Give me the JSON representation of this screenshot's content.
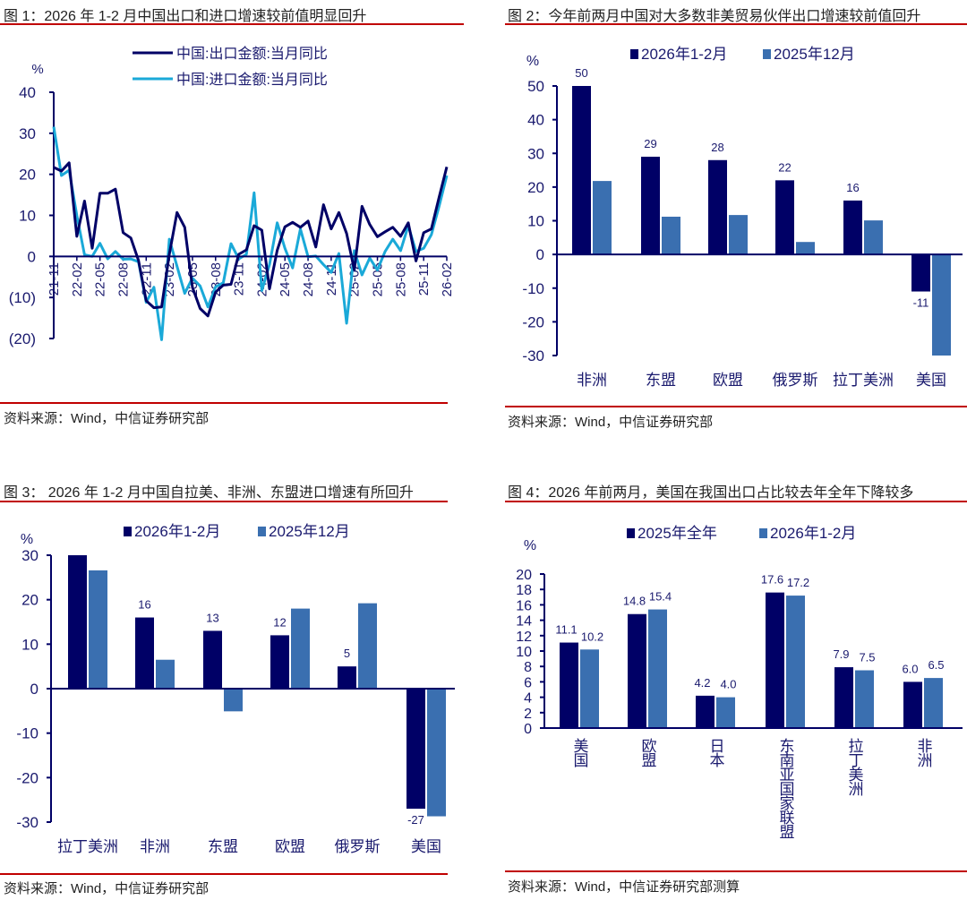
{
  "colors": {
    "navy": "#000066",
    "blue": "#3a6fb0",
    "cyan": "#1aa9d8",
    "rule": "#c00000"
  },
  "panels": [
    {
      "title": "图 1：2026 年 1-2 月中国出口和进口增速较前值明显回升",
      "source": "资料来源：Wind，中信证券研究部"
    },
    {
      "title": "图 2：今年前两月中国对大多数非美贸易伙伴出口增速较前值回升",
      "source": "资料来源：Wind，中信证券研究部"
    },
    {
      "title": "图 3： 2026 年 1-2 月中国自拉美、非洲、东盟进口增速有所回升",
      "source": "资料来源：Wind，中信证券研究部"
    },
    {
      "title": "图 4：2026 年前两月，美国在我国出口占比较去年全年下降较多",
      "source": "资料来源：Wind，中信证券研究部测算"
    }
  ],
  "chart_data": [
    {
      "type": "line",
      "yunit": "%",
      "ylim": [
        -20,
        40
      ],
      "yticks": [
        40,
        30,
        20,
        10,
        0,
        -10,
        -20
      ],
      "ytick_labels": [
        "40",
        "30",
        "20",
        "10",
        "0",
        "(10)",
        "(20)"
      ],
      "x_start": "21-11",
      "x_end": "26-02",
      "xtick_labels": [
        "21-11",
        "22-02",
        "22-05",
        "22-08",
        "22-11",
        "23-02",
        "23-05",
        "23-08",
        "23-11",
        "24-02",
        "24-05",
        "24-08",
        "24-11",
        "25-02",
        "25-05",
        "25-08",
        "25-11",
        "26-02"
      ],
      "legend": "top-center",
      "series": [
        {
          "name": "中国:出口金额:当月同比",
          "color": "#000066",
          "values": [
            21.7,
            20.8,
            22.8,
            4.9,
            13.5,
            2.0,
            15.4,
            15.4,
            16.4,
            5.8,
            4.5,
            -1.0,
            -10.8,
            -12.5,
            -12.3,
            0.5,
            10.7,
            7.1,
            -7.5,
            -12.7,
            -14.5,
            -8.7,
            -7.0,
            -6.8,
            0.5,
            1.6,
            7.5,
            6.4,
            -7.9,
            1.5,
            7.2,
            8.3,
            7.1,
            8.6,
            2.3,
            12.6,
            6.7,
            10.7,
            5.6,
            -3.3,
            12.2,
            7.8,
            4.8,
            6.0,
            7.1,
            4.9,
            8.2,
            -1.1,
            5.8,
            6.7,
            14.4,
            21.8
          ]
        },
        {
          "name": "中国:进口金额:当月同比",
          "color": "#1aa9d8",
          "values": [
            31.6,
            19.7,
            21.0,
            10.0,
            0.4,
            0.0,
            3.2,
            -0.6,
            1.2,
            -0.7,
            -0.6,
            -1.3,
            -11.2,
            -7.5,
            -20.3,
            4.2,
            -2.4,
            -9.0,
            -5.3,
            -7.2,
            -12.3,
            -7.4,
            -6.4,
            3.1,
            -0.6,
            0.5,
            15.5,
            -8.3,
            -2.0,
            8.2,
            2.0,
            -2.8,
            6.7,
            -0.1,
            0.1,
            -2.0,
            -3.9,
            0.7,
            -16.3,
            1.4,
            -4.5,
            -0.4,
            -3.3,
            1.2,
            4.2,
            1.4,
            7.5,
            1.2,
            2.0,
            5.3,
            12.2,
            19.7
          ]
        }
      ]
    },
    {
      "type": "bar",
      "yunit": "%",
      "ylim": [
        -30,
        50
      ],
      "yticks": [
        50,
        40,
        30,
        20,
        10,
        0,
        -10,
        -20,
        -30
      ],
      "categories": [
        "非洲",
        "东盟",
        "欧盟",
        "俄罗斯",
        "拉丁美洲",
        "美国"
      ],
      "legend": "top",
      "series": [
        {
          "name": "2026年1-2月",
          "color": "#000066",
          "values": [
            50,
            29,
            28,
            22,
            16,
            -11
          ],
          "labels": [
            "50",
            "29",
            "28",
            "22",
            "16",
            "-11"
          ]
        },
        {
          "name": "2025年12月",
          "color": "#3a6fb0",
          "values": [
            21.8,
            11.2,
            11.7,
            3.7,
            10.1,
            -30
          ],
          "labels": []
        }
      ]
    },
    {
      "type": "bar",
      "yunit": "%",
      "ylim": [
        -30,
        30
      ],
      "yticks": [
        30,
        20,
        10,
        0,
        -10,
        -20,
        -30
      ],
      "categories": [
        "拉丁美洲",
        "非洲",
        "东盟",
        "欧盟",
        "俄罗斯",
        "美国"
      ],
      "legend": "top",
      "series": [
        {
          "name": "2026年1-2月",
          "color": "#000066",
          "values": [
            30,
            16,
            13,
            12,
            5,
            -27
          ],
          "labels": [
            "",
            "16",
            "13",
            "12",
            "5",
            "-27"
          ]
        },
        {
          "name": "2025年12月",
          "color": "#3a6fb0",
          "values": [
            26.6,
            6.5,
            -5.1,
            18.0,
            19.2,
            -28.7
          ],
          "labels": []
        }
      ]
    },
    {
      "type": "bar",
      "yunit": "%",
      "ylim": [
        0,
        20
      ],
      "yticks": [
        20,
        18,
        16,
        14,
        12,
        10,
        8,
        6,
        4,
        2,
        0
      ],
      "categories": [
        "美国",
        "欧盟",
        "日本",
        "东南亚国家联盟",
        "拉丁美洲",
        "非洲"
      ],
      "legend": "top",
      "series": [
        {
          "name": "2025年全年",
          "color": "#000066",
          "values": [
            11.1,
            14.8,
            4.2,
            17.6,
            7.9,
            6.0
          ],
          "labels": [
            "11.1",
            "14.8",
            "4.2",
            "17.6",
            "7.9",
            "6.0"
          ]
        },
        {
          "name": "2026年1-2月",
          "color": "#3a6fb0",
          "values": [
            10.2,
            15.4,
            4.0,
            17.2,
            7.5,
            6.5
          ],
          "labels": [
            "10.2",
            "15.4",
            "4.0",
            "17.2",
            "7.5",
            "6.5"
          ]
        }
      ]
    }
  ]
}
